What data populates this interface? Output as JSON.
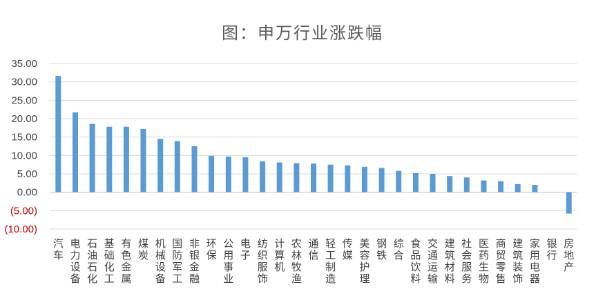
{
  "chart_data": {
    "type": "bar",
    "title": "图：申万行业涨跌幅",
    "xlabel": "",
    "ylabel": "",
    "ylim": [
      -10,
      35
    ],
    "y_tick_values": [
      35,
      30,
      25,
      20,
      15,
      10,
      5,
      0,
      -5,
      -10
    ],
    "y_tick_labels": [
      "35.00",
      "30.00",
      "25.00",
      "20.00",
      "15.00",
      "10.00",
      "5.00",
      "0.00",
      "(5.00)",
      "(10.00)"
    ],
    "negative_label_color": "#C00000",
    "bar_color": "#5B9BD5",
    "grid": true,
    "categories": [
      "汽车",
      "电力设备",
      "石油石化",
      "基础化工",
      "有色金属",
      "煤炭",
      "机械设备",
      "国防军工",
      "非银金融",
      "环保",
      "公用事业",
      "电子",
      "纺织服饰",
      "计算机",
      "农林牧渔",
      "通信",
      "轻工制造",
      "传媒",
      "美容护理",
      "钢铁",
      "综合",
      "食品饮料",
      "交通运输",
      "建筑材料",
      "社会服务",
      "医药生物",
      "商贸零售",
      "建筑装饰",
      "家用电器",
      "银行",
      "房地产"
    ],
    "values": [
      31.6,
      21.7,
      18.6,
      17.8,
      17.8,
      17.2,
      14.5,
      13.9,
      12.5,
      9.9,
      9.7,
      9.5,
      8.4,
      8.1,
      7.9,
      7.8,
      7.5,
      7.3,
      6.9,
      6.6,
      5.8,
      5.2,
      5.0,
      4.4,
      4.0,
      3.2,
      3.0,
      2.2,
      2.0,
      0.0,
      -5.8
    ]
  }
}
